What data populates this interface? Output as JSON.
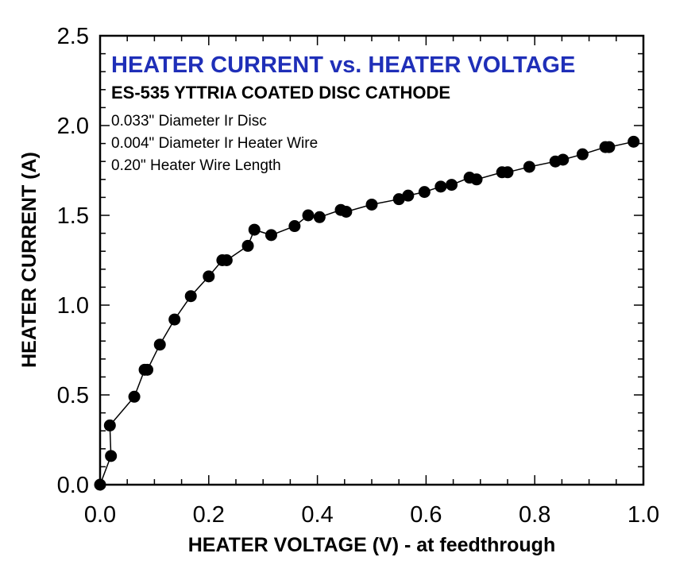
{
  "chart_data": {
    "type": "scatter",
    "title": "HEATER CURRENT vs. HEATER VOLTAGE",
    "subtitle": "ES-535 YTTRIA COATED DISC CATHODE",
    "notes": [
      "0.033\" Diameter Ir Disc",
      "0.004\" Diameter Ir Heater Wire",
      "0.20\" Heater Wire Length"
    ],
    "xlabel": "HEATER VOLTAGE (V) - at feedthrough",
    "ylabel": "HEATER CURRENT (A)",
    "xlim": [
      0,
      1.0
    ],
    "ylim": [
      0,
      2.5
    ],
    "xticks": [
      "0.0",
      "0.2",
      "0.4",
      "0.6",
      "0.8",
      "1.0"
    ],
    "yticks": [
      "0.0",
      "0.5",
      "1.0",
      "1.5",
      "2.0",
      "2.5"
    ],
    "grid": false,
    "connected": true,
    "colors": {
      "title": "#1f2fb8",
      "marker": "#000000",
      "line": "#000000",
      "axes": "#000000"
    },
    "series": [
      {
        "x": [
          0.0,
          0.02,
          0.018,
          0.063,
          0.082,
          0.087,
          0.11,
          0.137,
          0.167,
          0.2,
          0.225,
          0.233,
          0.272,
          0.284,
          0.315,
          0.358,
          0.383,
          0.404,
          0.443,
          0.453,
          0.5,
          0.55,
          0.567,
          0.597,
          0.627,
          0.647,
          0.68,
          0.693,
          0.74,
          0.75,
          0.79,
          0.838,
          0.852,
          0.888,
          0.93,
          0.937,
          0.982
        ],
        "y": [
          0.0,
          0.16,
          0.33,
          0.49,
          0.64,
          0.64,
          0.78,
          0.92,
          1.05,
          1.16,
          1.25,
          1.25,
          1.33,
          1.42,
          1.39,
          1.44,
          1.5,
          1.49,
          1.53,
          1.52,
          1.56,
          1.59,
          1.61,
          1.63,
          1.66,
          1.67,
          1.71,
          1.7,
          1.74,
          1.74,
          1.77,
          1.8,
          1.81,
          1.84,
          1.88,
          1.88,
          1.91
        ]
      }
    ]
  }
}
